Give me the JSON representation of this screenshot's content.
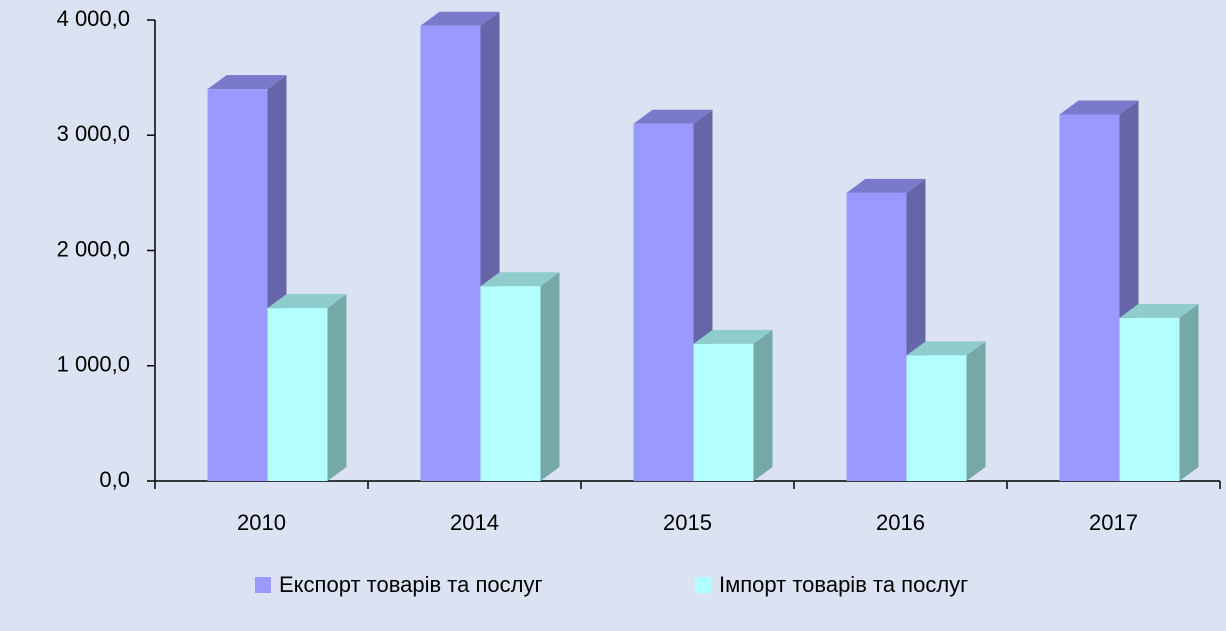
{
  "chart_data": {
    "type": "bar3d",
    "categories": [
      "2010",
      "2014",
      "2015",
      "2016",
      "2017"
    ],
    "series": [
      {
        "name": "Експорт товарів та послуг",
        "color": "#9999ff",
        "values": [
          3400,
          3950,
          3100,
          2500,
          3180
        ]
      },
      {
        "name": "Імпорт товарів та послуг",
        "color": "#b3ffff",
        "values": [
          1500,
          1690,
          1190,
          1090,
          1415
        ]
      }
    ],
    "ylim": [
      0,
      4000
    ],
    "yticks": [
      {
        "value": 0,
        "label": "0,0"
      },
      {
        "value": 1000,
        "label": "1 000,0"
      },
      {
        "value": 2000,
        "label": "2 000,0"
      },
      {
        "value": 3000,
        "label": "3 000,0"
      },
      {
        "value": 4000,
        "label": "4 000,0"
      }
    ],
    "legend": "bottom"
  }
}
